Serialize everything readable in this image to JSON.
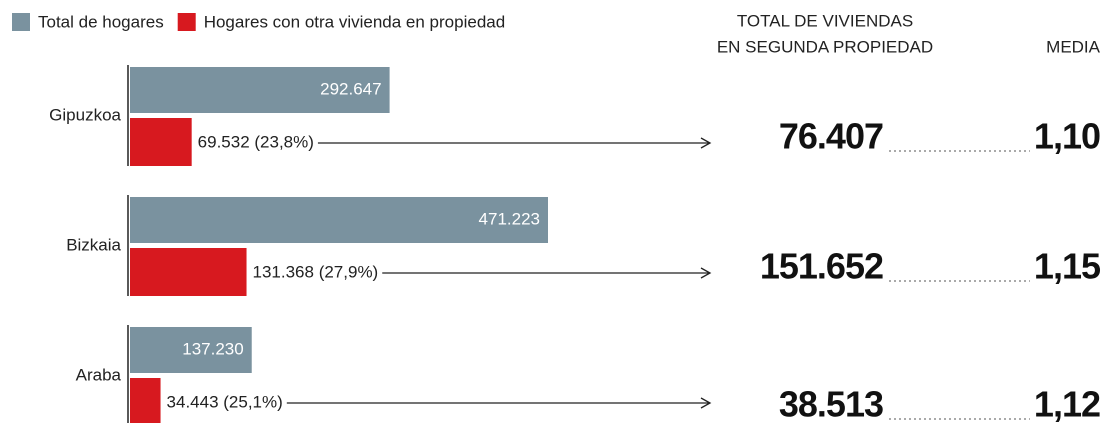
{
  "chart_data": {
    "type": "bar",
    "orientation": "horizontal",
    "categories": [
      "Gipuzkoa",
      "Bizkaia",
      "Araba"
    ],
    "series": [
      {
        "name": "Total de hogares",
        "color": "#7a929f",
        "values": [
          292647,
          471223,
          137230
        ],
        "value_labels": [
          "292.647",
          "471.223",
          "137.230"
        ]
      },
      {
        "name": "Hogares con otra vivienda en propiedad",
        "color": "#d7191f",
        "values": [
          69532,
          131368,
          34443
        ],
        "value_labels": [
          "69.532 (23,8%)",
          "131.368 (27,9%)",
          "34.443 (25,1%)"
        ]
      }
    ],
    "columns": [
      {
        "header": [
          "TOTAL DE VIVIENDAS",
          "EN SEGUNDA PROPIEDAD"
        ],
        "values": [
          76407,
          151652,
          38513
        ],
        "value_labels": [
          "76.407",
          "151.652",
          "38.513"
        ]
      },
      {
        "header": [
          "MEDIA"
        ],
        "values": [
          1.1,
          1.15,
          1.12
        ],
        "value_labels": [
          "1,10",
          "1,15",
          "1,12"
        ]
      }
    ]
  }
}
